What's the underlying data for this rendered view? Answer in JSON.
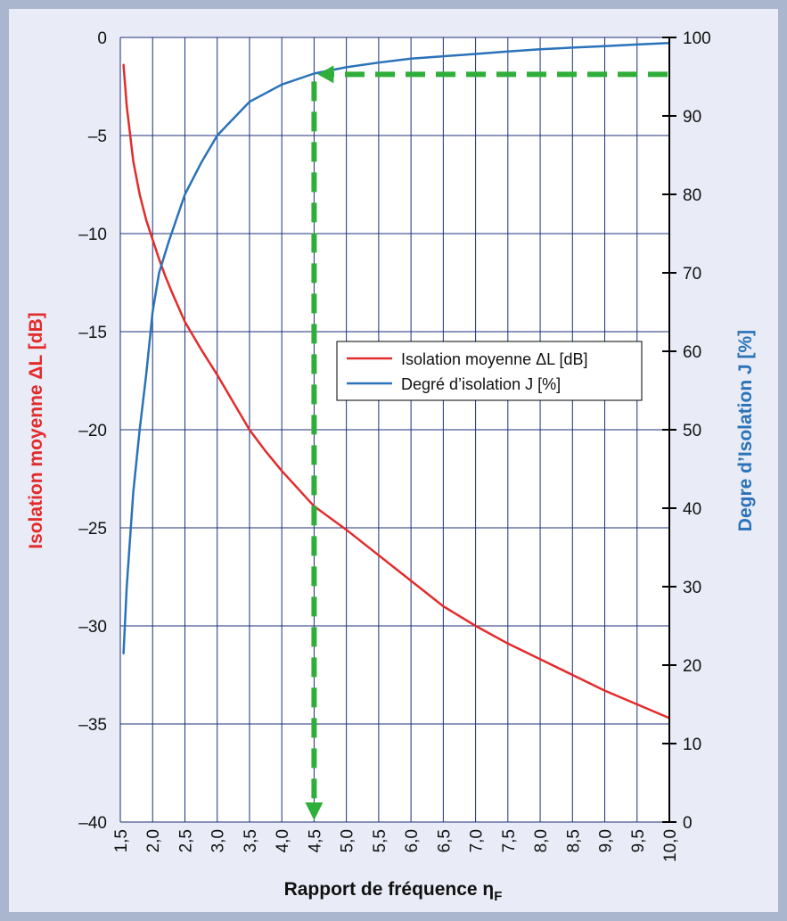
{
  "chart_data": {
    "type": "line",
    "xlabel": "Rapport de fréquence η",
    "xlabel_sub": "F",
    "ylabel_left": "Isolation moyenne ΔL [dB]",
    "ylabel_right": "Degre d’Isolation J [%]",
    "x_ticks": [
      "1,5",
      "2,0",
      "2,5",
      "3,0",
      "3,5",
      "4,0",
      "4,5",
      "5,0",
      "5,5",
      "6,0",
      "6,5",
      "7,0",
      "7,5",
      "8,0",
      "8,5",
      "9,0",
      "9,5",
      "10,0"
    ],
    "x_tick_values": [
      1.5,
      2,
      2.5,
      3,
      3.5,
      4,
      4.5,
      5,
      5.5,
      6,
      6.5,
      7,
      7.5,
      8,
      8.5,
      9,
      9.5,
      10
    ],
    "y_left_ticks": [
      "0",
      "–5",
      "–10",
      "–15",
      "–20",
      "–25",
      "–30",
      "–35",
      "–40"
    ],
    "y_left_tick_values": [
      0,
      -5,
      -10,
      -15,
      -20,
      -25,
      -30,
      -35,
      -40
    ],
    "y_right_ticks": [
      "100",
      "90",
      "80",
      "70",
      "60",
      "50",
      "40",
      "30",
      "20",
      "10",
      "0"
    ],
    "y_right_tick_values": [
      100,
      90,
      80,
      70,
      60,
      50,
      40,
      30,
      20,
      10,
      0
    ],
    "xlim": [
      1.5,
      10.0
    ],
    "ylim_left": [
      -40,
      0
    ],
    "ylim_right": [
      0,
      100
    ],
    "grid": true,
    "legend_position": "center-right",
    "series": [
      {
        "name": "Isolation moyenne ΔL [dB]",
        "axis": "left",
        "color": "#e32b2b",
        "x": [
          1.55,
          1.6,
          1.7,
          1.8,
          1.9,
          2.0,
          2.1,
          2.2,
          2.3,
          2.5,
          2.75,
          3.0,
          3.25,
          3.5,
          3.75,
          4.0,
          4.5,
          5.0,
          5.5,
          6.0,
          6.5,
          7.0,
          7.5,
          8.0,
          8.5,
          9.0,
          9.5,
          10.0
        ],
        "y": [
          -1.4,
          -3.5,
          -6.3,
          -8.0,
          -9.3,
          -10.3,
          -11.3,
          -12.2,
          -13.0,
          -14.5,
          -15.9,
          -17.2,
          -18.6,
          -20.0,
          -21.1,
          -22.1,
          -23.9,
          -25.1,
          -26.4,
          -27.7,
          -29.0,
          -30.0,
          -30.9,
          -31.7,
          -32.5,
          -33.3,
          -34.0,
          -34.7
        ]
      },
      {
        "name": "Degré d’isolation J [%]",
        "axis": "right",
        "color": "#2a72b9",
        "x": [
          1.55,
          1.6,
          1.7,
          1.8,
          1.9,
          2.0,
          2.1,
          2.25,
          2.5,
          2.75,
          3.0,
          3.5,
          4.0,
          4.5,
          5.0,
          5.5,
          6.0,
          6.5,
          7.0,
          7.5,
          8.0,
          8.5,
          9.0,
          9.5,
          10.0
        ],
        "y": [
          21.5,
          30.0,
          42.0,
          50.0,
          57.0,
          65.0,
          70.0,
          74.0,
          80.0,
          84.0,
          87.5,
          91.8,
          94.0,
          95.4,
          96.2,
          96.8,
          97.3,
          97.6,
          97.9,
          98.2,
          98.5,
          98.7,
          98.9,
          99.1,
          99.3
        ]
      }
    ],
    "annotation": {
      "color": "#2fae3a",
      "vertical_at_x": 4.5,
      "horizontal_at_right_value": 95.3
    }
  }
}
